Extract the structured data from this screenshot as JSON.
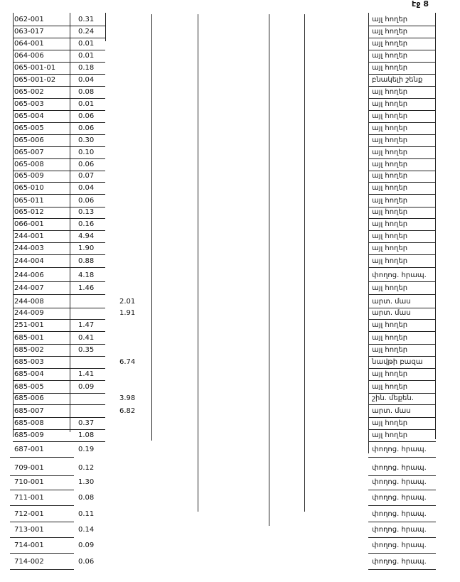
{
  "header": {
    "page": "էջ 8"
  },
  "table": {
    "rows": [
      {
        "code": "062-001",
        "area": "0.31",
        "use": "այլ հողեր"
      },
      {
        "code": "063-017",
        "area": "0.24",
        "use": "այլ հողեր"
      },
      {
        "code": "064-001",
        "area": "0.01",
        "use": "այլ հողեր"
      },
      {
        "code": "064-006",
        "area": "0.01",
        "use": "այլ հողեր"
      },
      {
        "code": "065-001-01",
        "area": "0.18",
        "use": "այլ հողեր"
      },
      {
        "code": "065-001-02",
        "area": "0.04",
        "use": "բնակելի շենք"
      },
      {
        "code": "065-002",
        "area": "0.08",
        "use": "այլ հողեր"
      },
      {
        "code": "065-003",
        "area": "0.01",
        "use": "այլ հողեր"
      },
      {
        "code": "065-004",
        "area": "0.06",
        "use": "այլ հողեր"
      },
      {
        "code": "065-005",
        "area": "0.06",
        "use": "այլ հողեր"
      },
      {
        "code": "065-006",
        "area": "0.30",
        "use": "այլ հողեր"
      },
      {
        "code": "065-007",
        "area": "0.10",
        "use": "այլ հողեր"
      },
      {
        "code": "065-008",
        "area": "0.06",
        "use": "այլ հողեր"
      },
      {
        "code": "065-009",
        "area": "0.07",
        "use": "այլ հողեր"
      },
      {
        "code": "065-010",
        "area": "0.04",
        "use": "այլ հողեր"
      },
      {
        "code": "065-011",
        "area": "0.06",
        "use": "այլ հողեր"
      },
      {
        "code": "065-012",
        "area": "0.13",
        "use": "այլ հողեր"
      },
      {
        "code": "066-001",
        "area": "0.16",
        "use": "այլ հողեր"
      },
      {
        "code": "244-001",
        "area": "4.94",
        "use": "այլ հողեր"
      },
      {
        "code": "244-003",
        "area": "1.90",
        "use": "այլ հողեր"
      },
      {
        "code": "244-004",
        "area": "0.88",
        "use": "այլ հողեր"
      },
      {
        "code": "244-006",
        "area": "4.18",
        "use": "փողոց. հրապ."
      },
      {
        "code": "244-007",
        "area": "1.46",
        "use": "այլ հողեր"
      },
      {
        "code": "244-008",
        "area2": "2.01",
        "use": "արտ. մաս"
      },
      {
        "code": "244-009",
        "area2": "1.91",
        "use": "արտ. մաս"
      },
      {
        "code": "251-001",
        "area": "1.47",
        "use": "այլ հողեր"
      },
      {
        "code": "685-001",
        "area": "0.41",
        "use": "այլ հողեր"
      },
      {
        "code": "685-002",
        "area": "0.35",
        "use": "այլ հողեր"
      },
      {
        "code": "685-003",
        "area2": "6.74",
        "use": "նավթի բազա"
      },
      {
        "code": "685-004",
        "area": "1.41",
        "use": "այլ հողեր"
      },
      {
        "code": "685-005",
        "area": "0.09",
        "use": "այլ հողեր"
      },
      {
        "code": "685-006",
        "area2": "3.98",
        "use": "շին. մեքեն."
      },
      {
        "code": "685-007",
        "area2": "6.82",
        "use": "արտ. մաս"
      },
      {
        "code": "685-008",
        "area": "0.37",
        "use": "այլ հողեր"
      },
      {
        "code": "685-009",
        "area": "1.08",
        "use": "այլ հողեր"
      },
      {
        "code": "687-001",
        "area": "0.19",
        "use": "փողոց. հրապ."
      },
      {
        "code": "709-001",
        "area": "0.12",
        "use": "փողոց. հրապ."
      },
      {
        "code": "710-001",
        "area": "1.30",
        "use": "փողոց. հրապ."
      },
      {
        "code": "711-001",
        "area": "0.08",
        "use": "փողոց. հրապ."
      },
      {
        "code": "712-001",
        "area": "0.11",
        "use": "փողոց. հրապ."
      },
      {
        "code": "713-001",
        "area": "0.14",
        "use": "փողոց. հրապ."
      },
      {
        "code": "714-001",
        "area": "0.09",
        "use": "փողոց. հրապ."
      },
      {
        "code": "714-002",
        "area": "0.06",
        "use": "փողոց. հրապ."
      }
    ]
  }
}
